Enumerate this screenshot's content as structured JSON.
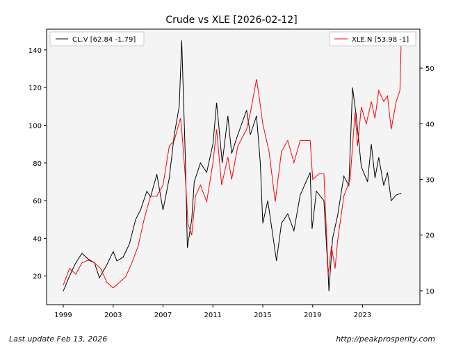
{
  "chart_data": {
    "type": "line",
    "title": "Crude vs XLE  [2026-02-12]",
    "xlim": [
      1997.66,
      2027.6
    ],
    "x_ticks": [
      1999,
      2003,
      2007,
      2011,
      2015,
      2019,
      2023
    ],
    "left_axis": {
      "ylim": [
        4.8,
        151
      ],
      "ticks": [
        20,
        40,
        60,
        80,
        100,
        120,
        140
      ]
    },
    "right_axis": {
      "ylim": [
        7.5,
        57
      ],
      "ticks": [
        10,
        20,
        30,
        40,
        50
      ]
    },
    "grid": false,
    "background": "#f4f4f4",
    "series": [
      {
        "name": "CL.V [62.84 -1.79]",
        "axis": "left",
        "color": "#000000",
        "legend": "top-left",
        "x": [
          1999.0,
          1999.5,
          2000.0,
          2000.5,
          2001.0,
          2001.5,
          2001.9,
          2002.5,
          2003.0,
          2003.3,
          2003.8,
          2004.3,
          2004.8,
          2005.2,
          2005.7,
          2006.0,
          2006.5,
          2007.0,
          2007.5,
          2007.9,
          2008.3,
          2008.5,
          2008.8,
          2008.95,
          2009.3,
          2009.5,
          2010.0,
          2010.5,
          2011.0,
          2011.3,
          2011.75,
          2012.2,
          2012.5,
          2013.0,
          2013.7,
          2014.0,
          2014.5,
          2014.8,
          2015.0,
          2015.4,
          2015.9,
          2016.1,
          2016.5,
          2017.0,
          2017.5,
          2018.0,
          2018.8,
          2018.95,
          2019.3,
          2019.9,
          2020.25,
          2020.3,
          2020.6,
          2021.0,
          2021.5,
          2021.9,
          2022.2,
          2022.5,
          2022.9,
          2023.4,
          2023.7,
          2024.0,
          2024.3,
          2024.7,
          2025.0,
          2025.3,
          2025.7,
          2026.1
        ],
        "y": [
          12,
          20,
          27,
          32,
          29,
          27,
          19,
          26,
          33,
          28,
          30,
          37,
          50,
          55,
          65,
          62,
          74,
          55,
          72,
          95,
          110,
          145,
          80,
          35,
          50,
          70,
          80,
          75,
          90,
          112,
          80,
          105,
          85,
          95,
          108,
          95,
          105,
          80,
          48,
          60,
          37,
          28,
          48,
          53,
          44,
          63,
          75,
          45,
          65,
          60,
          20,
          12,
          40,
          52,
          73,
          68,
          120,
          105,
          78,
          70,
          90,
          72,
          83,
          68,
          75,
          60,
          63,
          64
        ]
      },
      {
        "name": "XLE.N [53.98 -1]",
        "axis": "right",
        "color": "#ff0000",
        "legend": "top-right",
        "x": [
          1999.0,
          1999.5,
          2000.0,
          2000.5,
          2001.0,
          2001.5,
          2002.0,
          2002.5,
          2003.0,
          2003.5,
          2004.0,
          2004.5,
          2005.0,
          2005.5,
          2006.0,
          2006.5,
          2007.0,
          2007.5,
          2007.9,
          2008.4,
          2008.5,
          2008.8,
          2009.0,
          2009.3,
          2009.6,
          2010.0,
          2010.5,
          2011.0,
          2011.3,
          2011.7,
          2012.2,
          2012.5,
          2013.0,
          2013.7,
          2014.0,
          2014.5,
          2014.7,
          2015.0,
          2015.5,
          2016.0,
          2016.5,
          2017.0,
          2017.5,
          2018.0,
          2018.8,
          2019.0,
          2019.5,
          2019.9,
          2020.25,
          2020.5,
          2020.8,
          2021.0,
          2021.5,
          2022.0,
          2022.4,
          2022.6,
          2022.9,
          2023.3,
          2023.7,
          2024.0,
          2024.3,
          2024.7,
          2025.0,
          2025.3,
          2025.7,
          2026.0,
          2026.1
        ],
        "y": [
          11,
          14,
          13,
          15,
          15.5,
          15,
          14,
          11.5,
          10.5,
          11.5,
          12.5,
          15,
          18,
          23,
          27,
          27,
          29,
          36,
          37,
          41,
          39,
          30,
          22,
          20,
          27,
          29,
          26,
          33,
          39,
          29,
          34,
          30,
          36,
          39,
          42,
          48,
          45,
          40,
          35,
          26,
          35,
          37,
          33,
          37,
          37,
          30,
          31,
          31,
          13,
          18,
          14,
          19,
          27,
          30,
          42,
          36,
          43,
          40,
          44,
          41,
          46,
          44,
          45,
          39,
          44,
          46,
          55
        ]
      }
    ]
  },
  "footer": {
    "left": "Last update Feb 13, 2026",
    "right": "http://peakprosperity.com"
  }
}
